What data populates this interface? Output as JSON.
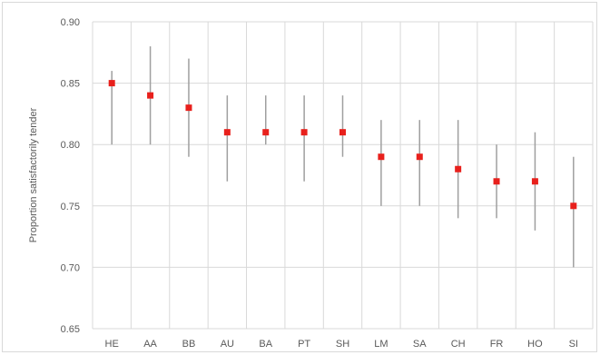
{
  "chart_data": {
    "type": "scatter",
    "ylabel": "Proportion satisfactorily tender",
    "xlabel": "",
    "title": "",
    "ylim": [
      0.65,
      0.9
    ],
    "yticks": [
      "0.65",
      "0.70",
      "0.75",
      "0.80",
      "0.85",
      "0.90"
    ],
    "grid": "vertical and horizontal",
    "categories": [
      "HE",
      "AA",
      "BB",
      "AU",
      "BA",
      "PT",
      "SH",
      "LM",
      "SA",
      "CH",
      "FR",
      "HO",
      "SI"
    ],
    "values": [
      0.85,
      0.84,
      0.83,
      0.81,
      0.81,
      0.81,
      0.81,
      0.79,
      0.79,
      0.78,
      0.77,
      0.77,
      0.75
    ],
    "error_low": [
      0.8,
      0.8,
      0.79,
      0.77,
      0.8,
      0.77,
      0.79,
      0.75,
      0.75,
      0.74,
      0.74,
      0.73,
      0.7
    ],
    "error_high": [
      0.86,
      0.88,
      0.87,
      0.84,
      0.84,
      0.84,
      0.84,
      0.82,
      0.82,
      0.82,
      0.8,
      0.81,
      0.79
    ],
    "colors": {
      "marker": "#e8201c",
      "error_bar": "#9f9f9f",
      "grid": "#d9d9d9",
      "text": "#595959"
    }
  }
}
